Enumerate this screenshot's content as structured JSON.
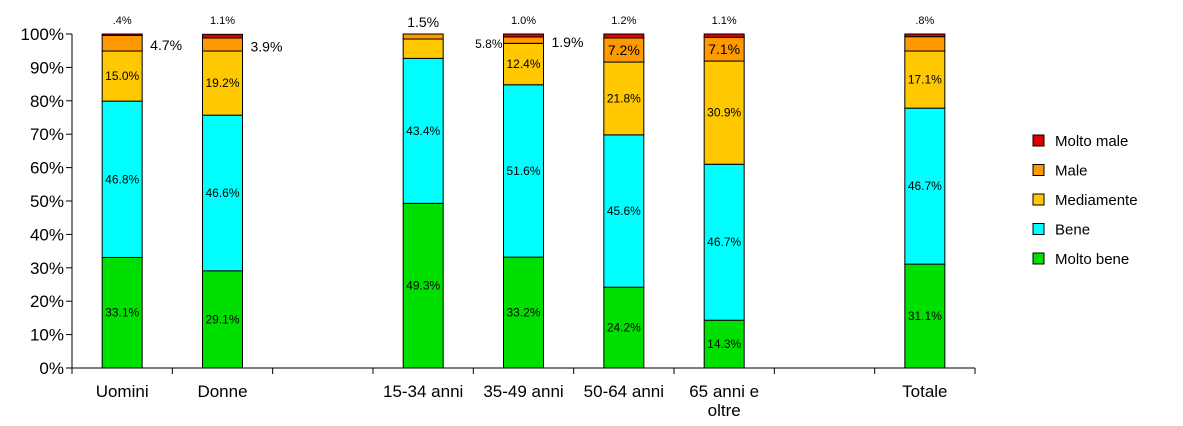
{
  "chart_data": {
    "type": "bar",
    "stacked": true,
    "percent": true,
    "categories": [
      "Uomini",
      "Donne",
      "",
      "15-34 anni",
      "35-49 anni",
      "50-64 anni",
      "65 anni e oltre",
      "",
      "Totale"
    ],
    "category_label_lines": [
      [
        "Uomini"
      ],
      [
        "Donne"
      ],
      [],
      [
        "15-34 anni"
      ],
      [
        "35-49 anni"
      ],
      [
        "50-64 anni"
      ],
      [
        "65 anni e",
        "oltre"
      ],
      [],
      [
        "Totale"
      ]
    ],
    "ylim": [
      0,
      100
    ],
    "yticks": [
      "0%",
      "10%",
      "20%",
      "30%",
      "40%",
      "50%",
      "60%",
      "70%",
      "80%",
      "90%",
      "100%"
    ],
    "legend_position": "right",
    "series": [
      {
        "name": "Molto bene",
        "color": "#00e000",
        "values": [
          33.1,
          29.1,
          null,
          49.3,
          33.2,
          24.2,
          14.3,
          null,
          31.1
        ],
        "labels": [
          "33.1%",
          "29.1%",
          "",
          "49.3%",
          "33.2%",
          "24.2%",
          "14.3%",
          "",
          "31.1%"
        ]
      },
      {
        "name": "Bene",
        "color": "#00ffff",
        "values": [
          46.8,
          46.6,
          null,
          43.4,
          51.6,
          45.6,
          46.7,
          null,
          46.7
        ],
        "labels": [
          "46.8%",
          "46.6%",
          "",
          "43.4%",
          "51.6%",
          "45.6%",
          "46.7%",
          "",
          "46.7%"
        ]
      },
      {
        "name": "Mediamente",
        "color": "#ffc800",
        "values": [
          15.0,
          19.2,
          null,
          5.8,
          12.4,
          21.8,
          30.9,
          null,
          17.1
        ],
        "labels": [
          "15.0%",
          "19.2%",
          "",
          "5.8%",
          "12.4%",
          "21.8%",
          "30.9%",
          "",
          "17.1%"
        ]
      },
      {
        "name": "Male",
        "color": "#ff9900",
        "values": [
          4.7,
          3.9,
          null,
          1.5,
          1.9,
          7.2,
          7.1,
          null,
          4.3
        ],
        "labels": [
          "4.7%",
          "3.9%",
          "",
          "1.5%",
          "1.9%",
          "7.2%",
          "7.1%",
          "",
          ""
        ]
      },
      {
        "name": "Molto male",
        "color": "#e00000",
        "values": [
          0.4,
          1.1,
          null,
          0.0,
          1.0,
          1.2,
          1.1,
          null,
          0.8
        ],
        "labels": [
          ".4%",
          "1.1%",
          "",
          "",
          "1.0%",
          "1.2%",
          "1.1%",
          "",
          ".8%"
        ]
      }
    ]
  }
}
